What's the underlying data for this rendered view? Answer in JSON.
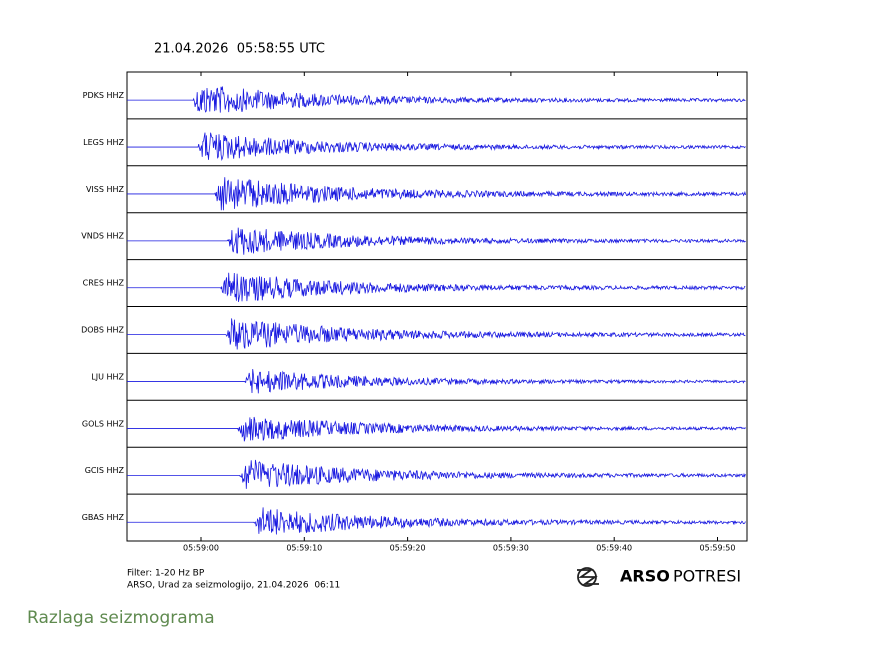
{
  "header": {
    "title": "21.04.2026  05:58:55 UTC"
  },
  "stations": [
    "PDKS HHZ",
    "LEGS HHZ",
    "VISS HHZ",
    "VNDS HHZ",
    "CRES HHZ",
    "DOBS HHZ",
    "LJU HHZ",
    "GOLS HHZ",
    "GCIS HHZ",
    "GBAS HHZ"
  ],
  "time_ticks": [
    "05:59:00",
    "05:59:10",
    "05:59:20",
    "05:59:30",
    "05:59:40",
    "05:59:50"
  ],
  "footer": {
    "filter": "Filter: 1-20 Hz BP",
    "credit": "ARSO, Urad za seizmologijo, 21.04.2026  06:11"
  },
  "logo": {
    "bold": "ARSO",
    "light": "POTRESI"
  },
  "caption": "Razlaga seizmograma"
}
